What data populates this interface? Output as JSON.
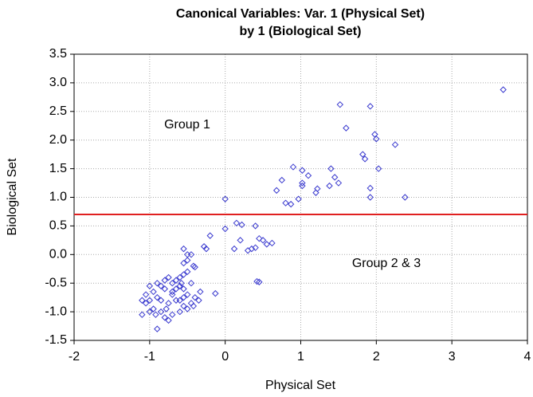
{
  "chart_data": {
    "type": "scatter",
    "title": [
      "Canonical Variables: Var. 1 (Physical Set)",
      "by 1 (Biological Set)"
    ],
    "x_label": "Physical Set",
    "y_label": "Biological Set",
    "annotations": [
      "Group 1",
      "Group 2 & 3"
    ],
    "hline": 0.7,
    "hline_color": "#e02020",
    "color": "#3a3acf",
    "grid": true,
    "xlim": [
      -2,
      4
    ],
    "ylim": [
      -1.5,
      3.5
    ],
    "xticks": [
      -2,
      -1,
      0,
      1,
      2,
      3,
      4
    ],
    "yticks": [
      -1.5,
      {
        "value": -1,
        "label": "-1.0"
      },
      -0.5,
      {
        "value": 0,
        "label": "0.0"
      },
      0.5,
      {
        "value": 1,
        "label": "1.0"
      },
      1.5,
      {
        "value": 2,
        "label": "2.0"
      },
      2.5,
      {
        "value": 3,
        "label": "3.0"
      },
      3.5
    ],
    "x": [
      3.68,
      1.52,
      1.92,
      1.6,
      1.98,
      2.0,
      2.25,
      1.82,
      1.85,
      2.03,
      1.4,
      1.45,
      1.5,
      1.38,
      1.92,
      1.92,
      2.38,
      0.9,
      1.02,
      1.1,
      1.02,
      1.02,
      0.75,
      0.68,
      1.22,
      1.2,
      0.97,
      0.8,
      0.87,
      0.0,
      0.0,
      0.15,
      0.22,
      0.4,
      0.2,
      0.12,
      0.3,
      0.35,
      0.45,
      0.5,
      0.55,
      0.62,
      0.4,
      0.42,
      0.45,
      -0.2,
      -0.28,
      -0.25,
      -0.13,
      -0.55,
      -0.5,
      -0.45,
      -0.5,
      -0.55,
      -0.42,
      -0.4,
      -0.5,
      -0.55,
      -0.6,
      -0.65,
      -0.75,
      -0.8,
      -0.7,
      -0.6,
      -0.55,
      -0.45,
      -0.33,
      -0.4,
      -0.5,
      -0.55,
      -0.6,
      -0.7,
      -0.8,
      -0.85,
      -0.9,
      -1.0,
      -1.05,
      -0.95,
      -0.9,
      -0.85,
      -0.75,
      -0.65,
      -0.55,
      -0.5,
      -0.45,
      -0.42,
      -0.35,
      -0.6,
      -0.7,
      -0.78,
      -0.85,
      -0.95,
      -1.05,
      -1.1,
      -1.0,
      -1.1,
      -1.0,
      -0.92,
      -0.8,
      -0.75,
      -0.9,
      -0.7,
      -0.65,
      -0.58
    ],
    "y": [
      2.88,
      2.62,
      2.59,
      2.21,
      2.1,
      2.02,
      1.92,
      1.75,
      1.67,
      1.5,
      1.5,
      1.35,
      1.25,
      1.2,
      1.16,
      1.0,
      1.0,
      1.53,
      1.47,
      1.38,
      1.25,
      1.2,
      1.3,
      1.12,
      1.15,
      1.08,
      0.97,
      0.9,
      0.88,
      0.97,
      0.45,
      0.55,
      0.52,
      0.5,
      0.25,
      0.1,
      0.07,
      0.1,
      0.28,
      0.25,
      0.18,
      0.2,
      0.12,
      -0.47,
      -0.48,
      0.33,
      0.14,
      0.1,
      -0.68,
      0.1,
      0.0,
      0.0,
      -0.1,
      -0.15,
      -0.2,
      -0.22,
      -0.3,
      -0.35,
      -0.4,
      -0.45,
      -0.4,
      -0.45,
      -0.5,
      -0.55,
      -0.6,
      -0.5,
      -0.65,
      -0.75,
      -0.7,
      -0.75,
      -0.8,
      -0.65,
      -0.6,
      -0.55,
      -0.5,
      -0.55,
      -0.7,
      -0.65,
      -0.75,
      -0.8,
      -0.85,
      -0.8,
      -0.9,
      -0.95,
      -0.85,
      -0.9,
      -0.8,
      -1.0,
      -1.05,
      -0.95,
      -1.0,
      -0.95,
      -0.85,
      -0.8,
      -0.8,
      -1.05,
      -1.0,
      -1.05,
      -1.1,
      -1.15,
      -1.3,
      -0.7,
      -0.6,
      -0.5
    ]
  }
}
